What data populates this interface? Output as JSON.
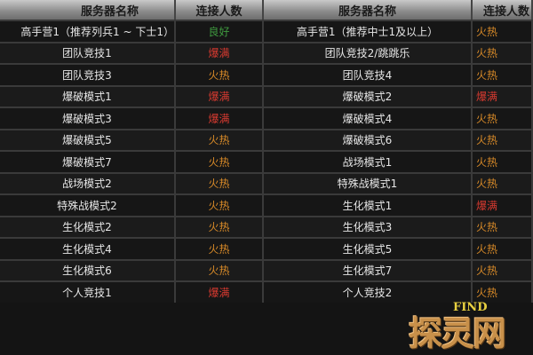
{
  "header": {
    "server_name": "服务器名称",
    "connections": "连接人数"
  },
  "colors": {
    "good": "#3f9a3f",
    "full": "#d83a30",
    "hot": "#d88a28"
  },
  "left": [
    {
      "name": "高手营1（推荐列兵1 ~ 下士1）",
      "status": "良好",
      "level": "good"
    },
    {
      "name": "团队竞技1",
      "status": "爆满",
      "level": "full"
    },
    {
      "name": "团队竞技3",
      "status": "火热",
      "level": "hot"
    },
    {
      "name": "爆破模式1",
      "status": "爆满",
      "level": "full"
    },
    {
      "name": "爆破模式3",
      "status": "爆满",
      "level": "full"
    },
    {
      "name": "爆破模式5",
      "status": "火热",
      "level": "hot"
    },
    {
      "name": "爆破模式7",
      "status": "火热",
      "level": "hot"
    },
    {
      "name": "战场模式2",
      "status": "火热",
      "level": "hot"
    },
    {
      "name": "特殊战模式2",
      "status": "火热",
      "level": "hot"
    },
    {
      "name": "生化模式2",
      "status": "火热",
      "level": "hot"
    },
    {
      "name": "生化模式4",
      "status": "火热",
      "level": "hot"
    },
    {
      "name": "生化模式6",
      "status": "火热",
      "level": "hot"
    },
    {
      "name": "个人竞技1",
      "status": "爆满",
      "level": "full"
    }
  ],
  "right": [
    {
      "name": "高手营1（推荐中士1及以上）",
      "status": "火热",
      "level": "hot"
    },
    {
      "name": "团队竞技2/跳跳乐",
      "status": "火热",
      "level": "hot"
    },
    {
      "name": "团队竞技4",
      "status": "火热",
      "level": "hot"
    },
    {
      "name": "爆破模式2",
      "status": "爆满",
      "level": "full"
    },
    {
      "name": "爆破模式4",
      "status": "火热",
      "level": "hot"
    },
    {
      "name": "爆破模式6",
      "status": "火热",
      "level": "hot"
    },
    {
      "name": "战场模式1",
      "status": "火热",
      "level": "hot"
    },
    {
      "name": "特殊战模式1",
      "status": "火热",
      "level": "hot"
    },
    {
      "name": "生化模式1",
      "status": "爆满",
      "level": "full"
    },
    {
      "name": "生化模式3",
      "status": "火热",
      "level": "hot"
    },
    {
      "name": "生化模式5",
      "status": "火热",
      "level": "hot"
    },
    {
      "name": "生化模式7",
      "status": "火热",
      "level": "hot"
    },
    {
      "name": "个人竞技2",
      "status": "火热",
      "level": "hot"
    }
  ],
  "watermark": {
    "find": "FIND",
    "text": "探灵网"
  }
}
